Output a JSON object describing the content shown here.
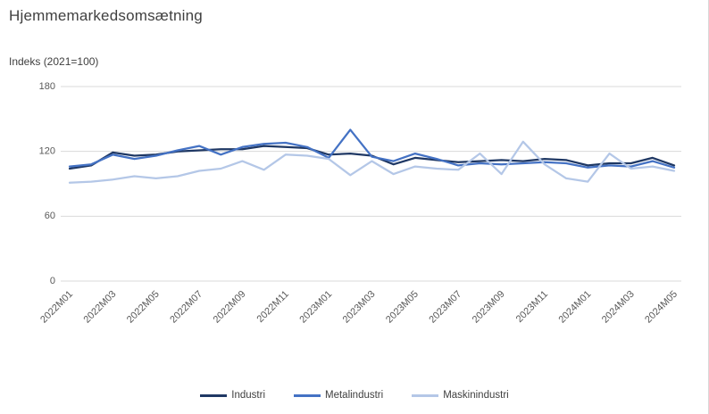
{
  "header": {
    "title": "Hjemmemarkedsomsætning",
    "y_axis_title": "Indeks (2021=100)"
  },
  "colors": {
    "grid": "#d9d9d9",
    "axis_text": "#595959",
    "title_text": "#404040",
    "industri": "#1F3864",
    "metalindustri": "#4472C4",
    "maskinindustri": "#B4C7E7"
  },
  "chart_data": {
    "type": "line",
    "title": "Hjemmemarkedsomsætning",
    "ylabel": "Indeks (2021=100)",
    "ylim": [
      0,
      180
    ],
    "yticks": [
      0,
      60,
      120,
      180
    ],
    "grid": "horizontal",
    "legend_position": "bottom",
    "x": [
      "2022M01",
      "2022M02",
      "2022M03",
      "2022M04",
      "2022M05",
      "2022M06",
      "2022M07",
      "2022M08",
      "2022M09",
      "2022M10",
      "2022M11",
      "2022M12",
      "2023M01",
      "2023M02",
      "2023M03",
      "2023M04",
      "2023M05",
      "2023M06",
      "2023M07",
      "2023M08",
      "2023M09",
      "2023M10",
      "2023M11",
      "2023M12",
      "2024M01",
      "2024M02",
      "2024M03",
      "2024M04",
      "2024M05"
    ],
    "x_tick_every": 2,
    "series": [
      {
        "name": "Industri",
        "color": "#1F3864",
        "values": [
          104,
          107,
          119,
          116,
          117,
          120,
          121,
          122,
          122,
          125,
          124,
          123,
          117,
          118,
          116,
          108,
          114,
          112,
          110,
          111,
          112,
          111,
          113,
          112,
          107,
          109,
          109,
          114,
          107
        ]
      },
      {
        "name": "Metalindustri",
        "color": "#4472C4",
        "values": [
          106,
          108,
          117,
          113,
          116,
          121,
          125,
          117,
          124,
          127,
          128,
          124,
          114,
          140,
          115,
          111,
          118,
          113,
          107,
          109,
          108,
          109,
          110,
          109,
          105,
          107,
          106,
          111,
          105
        ]
      },
      {
        "name": "Maskinindustri",
        "color": "#B4C7E7",
        "values": [
          91,
          92,
          94,
          97,
          95,
          97,
          102,
          104,
          111,
          103,
          117,
          116,
          113,
          98,
          111,
          99,
          106,
          104,
          103,
          118,
          99,
          129,
          108,
          95,
          92,
          118,
          104,
          106,
          102
        ]
      }
    ]
  }
}
